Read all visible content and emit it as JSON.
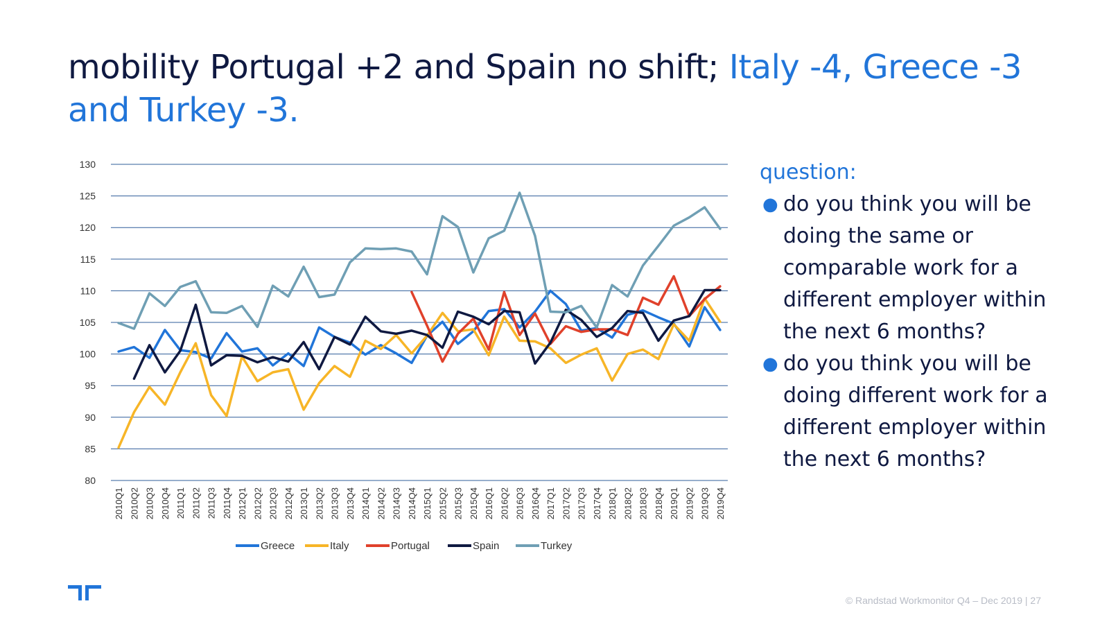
{
  "title": {
    "part1": "mobility Portugal +2 and Spain no shift; ",
    "part2": "Italy -4, Greece -3 and Turkey -3."
  },
  "question": {
    "heading": "question:",
    "items": [
      "do you think you will be doing the same or comparable work for a different employer within the next 6 months?",
      "do you think you will be doing different work for a different employer within the next 6 months?"
    ]
  },
  "footer": {
    "text": "© Randstad Workmonitor Q4 – Dec 2019",
    "separator": "|",
    "page": "27"
  },
  "colors": {
    "title_dark": "#0f1941",
    "title_accent": "#2175d9",
    "grid": "#2e5c9a"
  },
  "chart_data": {
    "type": "line",
    "y_ticks": [
      80,
      85,
      90,
      95,
      100,
      105,
      110,
      115,
      120,
      125,
      130
    ],
    "ylim": [
      80,
      130
    ],
    "legend_position": "bottom",
    "grid": true,
    "categories": [
      "2010Q1",
      "2010Q2",
      "2010Q3",
      "2010Q4",
      "2011Q1",
      "2011Q2",
      "2011Q3",
      "2011Q4",
      "2012Q1",
      "2012Q2",
      "2012Q3",
      "2012Q4",
      "2013Q1",
      "2013Q2",
      "2013Q3",
      "2013Q4",
      "2014Q1",
      "2014Q2",
      "2014Q3",
      "2014Q4",
      "2015Q1",
      "2015Q2",
      "2015Q3",
      "2015Q4",
      "2016Q1",
      "2016Q2",
      "2016Q3",
      "2016Q4",
      "2017Q1",
      "2017Q2",
      "2017Q3",
      "2017Q4",
      "2018Q1",
      "2018Q2",
      "2018Q3",
      "2018Q4",
      "2019Q1",
      "2019Q2",
      "2019Q3",
      "2019Q4"
    ],
    "series": [
      {
        "name": "Greece",
        "color": "#2175d9",
        "values": [
          100.4,
          101.1,
          99.4,
          103.8,
          100.6,
          100.3,
          99.3,
          103.3,
          100.4,
          100.9,
          98.2,
          100.1,
          98.1,
          104.2,
          102.7,
          101.8,
          99.9,
          101.4,
          100.1,
          98.6,
          102.9,
          105.1,
          101.6,
          103.6,
          106.8,
          107.1,
          104.2,
          106.7,
          110.0,
          107.9,
          103.7,
          104.1,
          102.6,
          106.2,
          106.9,
          105.8,
          104.8,
          101.2,
          107.4,
          103.8
        ]
      },
      {
        "name": "Italy",
        "color": "#f7b527",
        "values": [
          85.2,
          90.8,
          94.8,
          92.0,
          97.1,
          101.7,
          93.5,
          90.2,
          99.6,
          95.7,
          97.1,
          97.6,
          91.2,
          95.4,
          98.1,
          96.4,
          102.1,
          100.8,
          103.0,
          100.1,
          102.9,
          106.5,
          103.6,
          103.9,
          99.8,
          105.9,
          102.1,
          102.0,
          100.9,
          98.6,
          99.9,
          100.9,
          95.8,
          100.0,
          100.7,
          99.2,
          104.7,
          102.1,
          108.8,
          105.1
        ]
      },
      {
        "name": "Portugal",
        "color": "#e0412b",
        "values": [
          null,
          null,
          null,
          null,
          null,
          null,
          null,
          null,
          null,
          null,
          null,
          null,
          null,
          null,
          null,
          null,
          null,
          null,
          null,
          109.8,
          104.5,
          98.8,
          103.2,
          105.6,
          100.7,
          109.8,
          103.0,
          106.4,
          101.6,
          104.4,
          103.5,
          103.9,
          103.9,
          103.0,
          108.9,
          107.8,
          112.3,
          106.0,
          108.7,
          110.7
        ]
      },
      {
        "name": "Spain",
        "color": "#0f1941",
        "values": [
          null,
          96.1,
          101.4,
          97.1,
          100.5,
          107.8,
          98.2,
          99.8,
          99.7,
          98.7,
          99.5,
          98.8,
          101.9,
          97.6,
          102.7,
          101.5,
          105.9,
          103.6,
          103.2,
          103.7,
          103.0,
          101.0,
          106.7,
          105.9,
          104.7,
          106.8,
          106.6,
          98.5,
          101.8,
          107.0,
          105.4,
          102.7,
          104.1,
          106.8,
          106.5,
          102.1,
          105.3,
          106.0,
          110.1,
          110.1
        ]
      },
      {
        "name": "Turkey",
        "color": "#6f9fb4",
        "values": [
          104.9,
          104.0,
          109.6,
          107.6,
          110.6,
          111.5,
          106.6,
          106.5,
          107.6,
          104.3,
          110.8,
          109.1,
          113.8,
          109.0,
          109.4,
          114.5,
          116.7,
          116.6,
          116.7,
          116.2,
          112.6,
          121.8,
          120.1,
          112.9,
          118.3,
          119.5,
          125.5,
          118.7,
          106.7,
          106.6,
          107.6,
          104.2,
          110.9,
          109.1,
          114.0,
          117.1,
          120.3,
          121.6,
          123.2,
          119.8
        ]
      }
    ]
  }
}
